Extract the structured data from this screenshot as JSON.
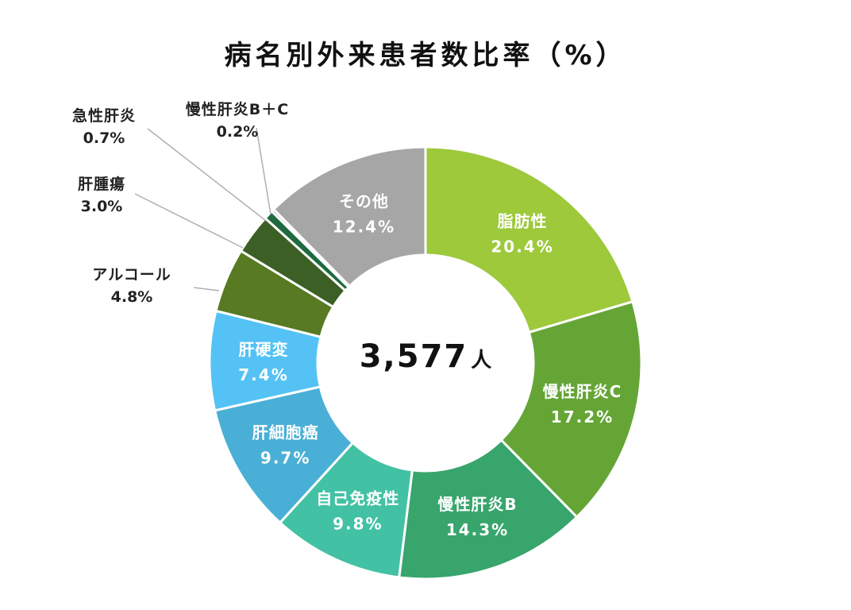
{
  "title": "病名別外来患者数比率（%）",
  "center": {
    "total": "3,577",
    "unit": "人"
  },
  "chart_data": {
    "type": "pie",
    "title": "病名別外来患者数比率（%）",
    "total_patients": 3577,
    "slices": [
      {
        "label": "脂肪性",
        "value": 20.4,
        "color": "#9dc93b",
        "label_style": "inside"
      },
      {
        "label": "慢性肝炎C",
        "value": 17.2,
        "color": "#65a536",
        "label_style": "inside"
      },
      {
        "label": "慢性肝炎B",
        "value": 14.3,
        "color": "#38a56c",
        "label_style": "inside"
      },
      {
        "label": "自己免疫性",
        "value": 9.8,
        "color": "#42c1a4",
        "label_style": "inside"
      },
      {
        "label": "肝細胞癌",
        "value": 9.7,
        "color": "#4aafd6",
        "label_style": "inside"
      },
      {
        "label": "肝硬変",
        "value": 7.4,
        "color": "#54c2f4",
        "label_style": "inside"
      },
      {
        "label": "アルコール",
        "value": 4.8,
        "color": "#577a22",
        "label_style": "outside"
      },
      {
        "label": "肝腫瘍",
        "value": 3.0,
        "color": "#3b5f24",
        "label_style": "outside"
      },
      {
        "label": "急性肝炎",
        "value": 0.7,
        "color": "#1f6a3f",
        "label_style": "outside"
      },
      {
        "label": "慢性肝炎B＋C",
        "value": 0.2,
        "color": "#2c5a35",
        "label_style": "outside"
      },
      {
        "label": "その他",
        "value": 12.4,
        "color": "#a6a6a6",
        "label_style": "inside"
      }
    ],
    "value_suffix": "%"
  }
}
